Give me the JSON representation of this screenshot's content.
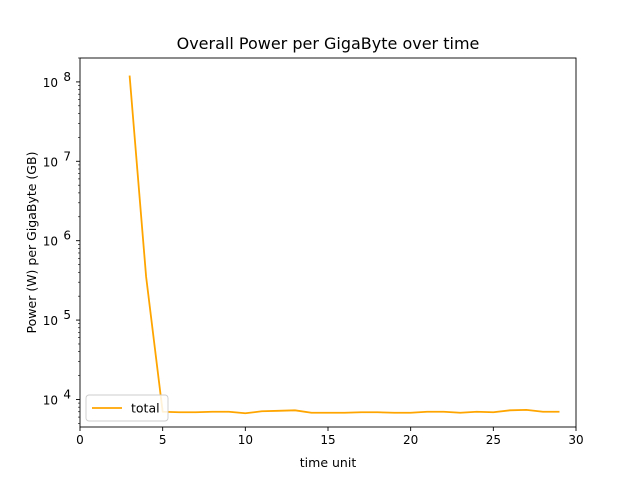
{
  "chart_data": {
    "type": "line",
    "title": "Overall Power per GigaByte over time",
    "xlabel": "time unit",
    "ylabel": "Power (W) per GigaByte (GB)",
    "xlim": [
      0,
      30
    ],
    "ylim": [
      4500,
      200000000
    ],
    "yscale": "log",
    "x_ticks": [
      0,
      5,
      10,
      15,
      20,
      25,
      30
    ],
    "y_ticks": [
      {
        "value": 10000,
        "base": "10",
        "exp": "4"
      },
      {
        "value": 100000,
        "base": "10",
        "exp": "5"
      },
      {
        "value": 1000000,
        "base": "10",
        "exp": "6"
      },
      {
        "value": 10000000,
        "base": "10",
        "exp": "7"
      },
      {
        "value": 100000000,
        "base": "10",
        "exp": "8"
      }
    ],
    "grid": false,
    "legend_position": "lower-left",
    "series": [
      {
        "name": "total",
        "color": "#ffa500",
        "x": [
          3,
          4,
          5,
          6,
          7,
          8,
          9,
          10,
          11,
          12,
          13,
          14,
          15,
          16,
          17,
          18,
          19,
          20,
          21,
          22,
          23,
          24,
          25,
          26,
          27,
          28,
          29
        ],
        "y": [
          120000000,
          350000,
          7000,
          6900,
          6900,
          7000,
          7000,
          6700,
          7100,
          7200,
          7300,
          6800,
          6800,
          6800,
          6900,
          6900,
          6800,
          6800,
          7000,
          7000,
          6800,
          7000,
          6900,
          7300,
          7400,
          7000,
          7000
        ]
      }
    ]
  }
}
